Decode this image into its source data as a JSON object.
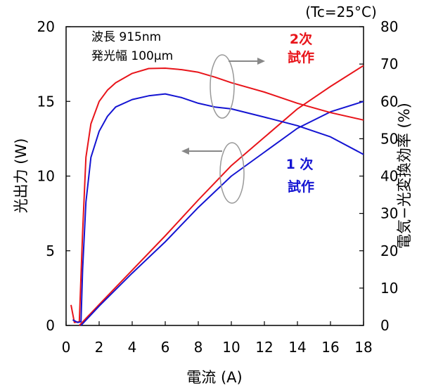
{
  "chart_data": {
    "type": "line",
    "condition_label": "(Tc=25°C)",
    "annotation_lines": [
      "波長 915nm",
      "発光幅 100μm"
    ],
    "xlabel": "電流 (A)",
    "ylabel_left": "光出力 (W)",
    "ylabel_right": "電気−光変換効率 (%)",
    "xlim": [
      0,
      18
    ],
    "ylim_left": [
      0,
      20
    ],
    "ylim_right": [
      0,
      80
    ],
    "x_ticks": [
      0,
      2,
      4,
      6,
      8,
      10,
      12,
      14,
      16,
      18
    ],
    "y_ticks_left": [
      0,
      5,
      10,
      15,
      20
    ],
    "y_ticks_right": [
      0,
      10,
      20,
      30,
      40,
      50,
      60,
      70,
      80
    ],
    "grid": false,
    "series_labels": [
      {
        "lines": [
          "2次",
          "試作"
        ],
        "color": "#e8141a"
      },
      {
        "lines": [
          "1 次",
          "試作"
        ],
        "color": "#1414d2"
      }
    ],
    "series": [
      {
        "axis": "left",
        "color": "#e8141a",
        "x": [
          0.8,
          2,
          4,
          6,
          8,
          10,
          12,
          14,
          16,
          18
        ],
        "y": [
          0.0,
          1.4,
          3.7,
          6.0,
          8.4,
          10.7,
          12.6,
          14.5,
          16.0,
          17.4
        ]
      },
      {
        "axis": "left",
        "color": "#1414d2",
        "x": [
          0.9,
          2,
          4,
          6,
          8,
          10,
          12,
          14,
          16,
          18
        ],
        "y": [
          0.0,
          1.3,
          3.5,
          5.6,
          7.9,
          10.0,
          11.6,
          13.2,
          14.3,
          15.0
        ]
      },
      {
        "axis": "right",
        "color": "#e8141a",
        "x": [
          0.3,
          0.5,
          0.8,
          1.0,
          1.2,
          1.5,
          2,
          2.5,
          3,
          4,
          5,
          6,
          7,
          8,
          9,
          10,
          12,
          14,
          16,
          18
        ],
        "y": [
          5.5,
          0.8,
          1.0,
          25,
          45,
          54,
          60,
          63,
          65,
          67.5,
          68.8,
          68.9,
          68.5,
          67.8,
          66.5,
          65.0,
          62.5,
          59.5,
          57.0,
          55.0
        ]
      },
      {
        "axis": "right",
        "color": "#1414d2",
        "x": [
          0.4,
          0.7,
          0.9,
          1.0,
          1.2,
          1.5,
          2,
          2.5,
          3,
          4,
          5,
          6,
          7,
          8,
          9,
          10,
          12,
          14,
          16,
          18
        ],
        "y": [
          1.5,
          0.8,
          1.0,
          15,
          33,
          45,
          52,
          56,
          58.5,
          60.5,
          61.5,
          62.0,
          61.0,
          59.5,
          58.5,
          58.0,
          55.8,
          53.5,
          50.5,
          45.8
        ]
      }
    ]
  }
}
